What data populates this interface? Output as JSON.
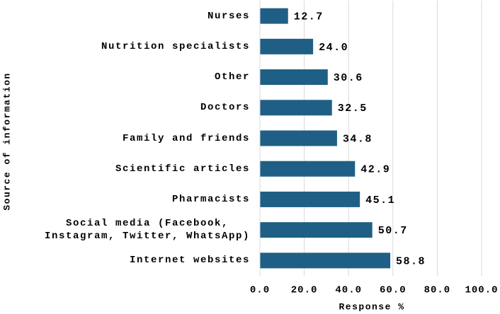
{
  "chart_data": {
    "type": "bar",
    "orientation": "horizontal",
    "x_label": "Response %",
    "y_label": "Source of information",
    "categories": [
      "Nurses",
      "Nutrition specialists",
      "Other",
      "Doctors",
      "Family and friends",
      "Scientific articles",
      "Pharmacists",
      "Social media (Facebook,\nInstagram, Twitter, WhatsApp)",
      "Internet websites"
    ],
    "values": [
      12.7,
      24.0,
      30.6,
      32.5,
      34.8,
      42.9,
      45.1,
      50.7,
      58.8
    ],
    "value_labels": [
      "12.7",
      "24.0",
      "30.6",
      "32.5",
      "34.8",
      "42.9",
      "45.1",
      "50.7",
      "58.8"
    ],
    "color": "#1f5f85",
    "xlim": [
      0,
      100
    ],
    "xticks": [
      {
        "value": 0,
        "label": "0.0"
      },
      {
        "value": 20,
        "label": "20.0"
      },
      {
        "value": 40,
        "label": "40.0"
      },
      {
        "value": 60,
        "label": "60.0"
      },
      {
        "value": 80,
        "label": "80.0"
      },
      {
        "value": 100,
        "label": "100.0"
      }
    ],
    "grid": true
  }
}
